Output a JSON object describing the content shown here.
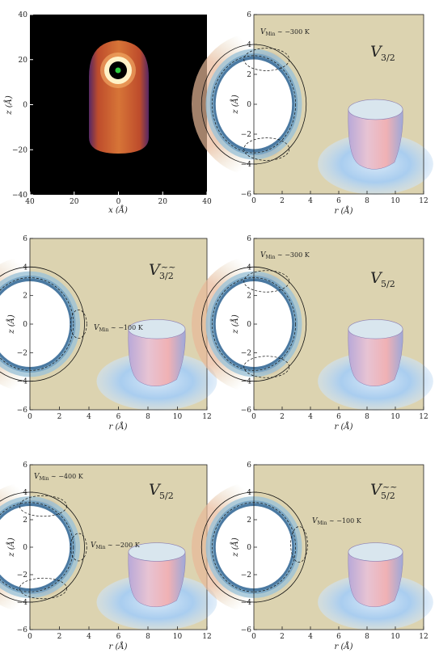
{
  "figure": {
    "panel_a": {
      "x_label": "x (Å)",
      "z_label": "z (Å)",
      "x_ticks": [
        "40",
        "20",
        "0",
        "20",
        "40"
      ],
      "z_ticks": [
        "40",
        "20",
        "0",
        "−20",
        "−40"
      ]
    },
    "axes": {
      "r_label": "r (Å)",
      "z_label": "z (Å)",
      "r_ticks": [
        "0",
        "2",
        "4",
        "6",
        "8",
        "10",
        "12"
      ],
      "z_ticks": [
        "6",
        "4",
        "2",
        "0",
        "−2",
        "−4",
        "−6"
      ]
    },
    "panels": [
      {
        "id": "b",
        "title_main": "V",
        "title_sub": "3/2",
        "tilde": "",
        "annotations": [
          {
            "text": "V",
            "sub": "Min",
            "rest": " ∼ −300 K"
          }
        ]
      },
      {
        "id": "c",
        "title_main": "V",
        "title_sub": "3/2",
        "tilde": "~~",
        "annotations": [
          {
            "text": "V",
            "sub": "Min",
            "rest": " ∼ −100 K"
          }
        ]
      },
      {
        "id": "d",
        "title_main": "V",
        "title_sub": "5/2",
        "tilde": "",
        "annotations": [
          {
            "text": "V",
            "sub": "Min",
            "rest": " ∼ −300 K"
          }
        ]
      },
      {
        "id": "e",
        "title_main": "V",
        "title_sub": "5/2",
        "tilde": "",
        "annotations": [
          {
            "text": "V",
            "sub": "Min",
            "rest": " ∼ −400 K"
          },
          {
            "text": "V",
            "sub": "Min",
            "rest": " ∼ −200 K"
          }
        ]
      },
      {
        "id": "f",
        "title_main": "V",
        "title_sub": "5/2",
        "tilde": "~~",
        "annotations": [
          {
            "text": "V",
            "sub": "Min",
            "rest": " ∼ −100 K"
          }
        ]
      }
    ]
  }
}
